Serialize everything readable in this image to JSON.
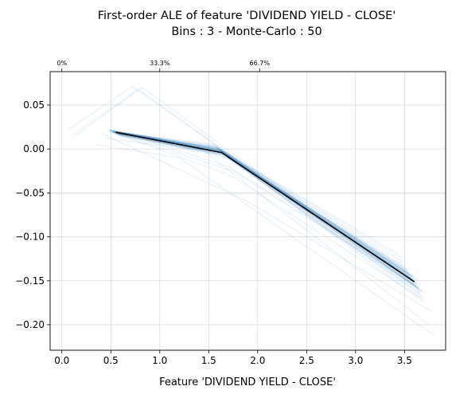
{
  "chart_data": {
    "type": "line",
    "title": "First-order ALE of feature 'DIVIDEND YIELD - CLOSE'",
    "subtitle": "Bins : 3 - Monte-Carlo : 50",
    "xlabel": "Feature 'DIVIDEND YIELD - CLOSE'",
    "ylabel": "",
    "xlim": [
      -0.12,
      3.92
    ],
    "ylim": [
      -0.229,
      0.088
    ],
    "xticks": [
      0.0,
      0.5,
      1.0,
      1.5,
      2.0,
      2.5,
      3.0,
      3.5
    ],
    "xtick_labels": [
      "0.0",
      "0.5",
      "1.0",
      "1.5",
      "2.0",
      "2.5",
      "3.0",
      "3.5"
    ],
    "yticks": [
      0.05,
      0.0,
      -0.05,
      -0.1,
      -0.15,
      -0.2
    ],
    "ytick_labels": [
      "0.05",
      "0.00",
      "−0.05",
      "−0.10",
      "−0.15",
      "−0.20"
    ],
    "top_axis": {
      "ticks": [
        0.0,
        1.0,
        2.02
      ],
      "labels": [
        "0%",
        "33.3%",
        "66.7%"
      ]
    },
    "grid": true,
    "main_series": {
      "color": "#000000",
      "x": [
        0.55,
        1.63,
        3.6
      ],
      "y": [
        0.019,
        -0.004,
        -0.151
      ]
    },
    "monte_carlo": {
      "color": "#1f77b4",
      "samples": [
        {
          "x": [
            0.52,
            1.55,
            3.55
          ],
          "y": [
            0.02,
            0.005,
            -0.14
          ]
        },
        {
          "x": [
            0.48,
            1.6,
            3.58
          ],
          "y": [
            0.021,
            0.0,
            -0.145
          ]
        },
        {
          "x": [
            0.5,
            1.62,
            3.6
          ],
          "y": [
            0.019,
            -0.002,
            -0.15
          ]
        },
        {
          "x": [
            0.53,
            1.65,
            3.62
          ],
          "y": [
            0.018,
            -0.006,
            -0.155
          ]
        },
        {
          "x": [
            0.55,
            1.58,
            3.5
          ],
          "y": [
            0.017,
            0.002,
            -0.13
          ]
        },
        {
          "x": [
            0.57,
            1.64,
            3.65
          ],
          "y": [
            0.016,
            -0.004,
            -0.16
          ]
        },
        {
          "x": [
            0.49,
            1.61,
            3.63
          ],
          "y": [
            0.022,
            -0.001,
            -0.148
          ]
        },
        {
          "x": [
            0.51,
            1.57,
            3.52
          ],
          "y": [
            0.02,
            0.004,
            -0.135
          ]
        },
        {
          "x": [
            0.56,
            1.66,
            3.66
          ],
          "y": [
            0.018,
            -0.008,
            -0.165
          ]
        },
        {
          "x": [
            0.54,
            1.63,
            3.57
          ],
          "y": [
            0.019,
            -0.003,
            -0.147
          ]
        },
        {
          "x": [
            0.47,
            1.59,
            3.54
          ],
          "y": [
            0.021,
            0.001,
            -0.142
          ]
        },
        {
          "x": [
            0.58,
            1.67,
            3.68
          ],
          "y": [
            0.015,
            -0.007,
            -0.17
          ]
        },
        {
          "x": [
            0.52,
            1.62,
            3.61
          ],
          "y": [
            0.02,
            -0.002,
            -0.152
          ]
        },
        {
          "x": [
            0.5,
            1.56,
            3.48
          ],
          "y": [
            0.019,
            0.003,
            -0.125
          ]
        },
        {
          "x": [
            0.55,
            1.64,
            3.64
          ],
          "y": [
            0.018,
            -0.005,
            -0.158
          ]
        },
        {
          "x": [
            0.53,
            1.6,
            3.59
          ],
          "y": [
            0.02,
            -0.001,
            -0.146
          ]
        },
        {
          "x": [
            0.49,
            1.65,
            3.62
          ],
          "y": [
            0.021,
            -0.004,
            -0.153
          ]
        },
        {
          "x": [
            0.57,
            1.61,
            3.56
          ],
          "y": [
            0.017,
            0.0,
            -0.143
          ]
        },
        {
          "x": [
            0.51,
            1.63,
            3.7
          ],
          "y": [
            0.019,
            -0.003,
            -0.175
          ]
        },
        {
          "x": [
            0.54,
            1.58,
            3.45
          ],
          "y": [
            0.02,
            0.002,
            -0.12
          ]
        },
        {
          "x": [
            0.56,
            1.66,
            3.6
          ],
          "y": [
            0.018,
            -0.006,
            -0.149
          ]
        },
        {
          "x": [
            0.5,
            1.62,
            3.58
          ],
          "y": [
            0.02,
            -0.002,
            -0.151
          ]
        },
        {
          "x": [
            0.53,
            1.59,
            3.53
          ],
          "y": [
            0.019,
            0.001,
            -0.139
          ]
        },
        {
          "x": [
            0.55,
            1.64,
            3.67
          ],
          "y": [
            0.018,
            -0.005,
            -0.162
          ]
        },
        {
          "x": [
            0.48,
            1.6,
            3.55
          ],
          "y": [
            0.022,
            -0.001,
            -0.144
          ]
        },
        {
          "x": [
            0.52,
            1.63,
            3.63
          ],
          "y": [
            0.019,
            -0.003,
            -0.154
          ]
        },
        {
          "x": [
            0.58,
            1.65,
            3.61
          ],
          "y": [
            0.016,
            -0.005,
            -0.156
          ]
        },
        {
          "x": [
            0.51,
            1.61,
            3.57
          ],
          "y": [
            0.02,
            -0.001,
            -0.146
          ]
        },
        {
          "x": [
            0.54,
            1.62,
            3.64
          ],
          "y": [
            0.019,
            -0.003,
            -0.15
          ]
        },
        {
          "x": [
            0.53,
            1.57,
            3.51
          ],
          "y": [
            0.02,
            0.002,
            -0.137
          ]
        },
        {
          "x": [
            0.56,
            1.66,
            3.69
          ],
          "y": [
            0.017,
            -0.007,
            -0.168
          ]
        },
        {
          "x": [
            0.5,
            1.64,
            3.62
          ],
          "y": [
            0.021,
            -0.004,
            -0.153
          ]
        },
        {
          "x": [
            0.55,
            1.6,
            3.59
          ],
          "y": [
            0.018,
            0.0,
            -0.145
          ]
        },
        {
          "x": [
            0.52,
            1.63,
            3.6
          ],
          "y": [
            0.019,
            -0.002,
            -0.149
          ]
        },
        {
          "x": [
            0.49,
            1.62,
            3.56
          ],
          "y": [
            0.021,
            -0.002,
            -0.147
          ]
        },
        {
          "x": [
            0.57,
            1.65,
            3.65
          ],
          "y": [
            0.016,
            -0.005,
            -0.159
          ]
        },
        {
          "x": [
            0.53,
            1.58,
            3.54
          ],
          "y": [
            0.02,
            0.001,
            -0.141
          ]
        },
        {
          "x": [
            0.51,
            1.61,
            3.62
          ],
          "y": [
            0.02,
            -0.001,
            -0.151
          ]
        },
        {
          "x": [
            0.55,
            1.67,
            3.66
          ],
          "y": [
            0.018,
            -0.008,
            -0.163
          ]
        },
        {
          "x": [
            0.54,
            1.62,
            3.58
          ],
          "y": [
            0.019,
            -0.003,
            -0.148
          ]
        },
        {
          "x": [
            0.62,
            1.7,
            3.62
          ],
          "y": [
            0.018,
            -0.02,
            -0.155
          ]
        },
        {
          "x": [
            0.58,
            1.68,
            3.55
          ],
          "y": [
            0.017,
            -0.01,
            -0.138
          ]
        },
        {
          "x": [
            0.6,
            1.75,
            3.64
          ],
          "y": [
            0.016,
            -0.025,
            -0.158
          ]
        },
        {
          "x": [
            0.54,
            1.72,
            3.7
          ],
          "y": [
            0.018,
            -0.03,
            -0.172
          ]
        },
        {
          "x": [
            0.06,
            0.72,
            3.65
          ],
          "y": [
            0.022,
            0.071,
            -0.158
          ]
        },
        {
          "x": [
            0.09,
            0.82,
            3.68
          ],
          "y": [
            0.011,
            0.07,
            -0.162
          ]
        },
        {
          "x": [
            0.1,
            0.78,
            3.72
          ],
          "y": [
            0.015,
            0.068,
            -0.165
          ]
        },
        {
          "x": [
            0.35,
            1.2,
            3.8
          ],
          "y": [
            0.005,
            -0.01,
            -0.212
          ]
        },
        {
          "x": [
            0.45,
            1.45,
            3.75
          ],
          "y": [
            0.012,
            -0.002,
            -0.2
          ]
        },
        {
          "x": [
            0.4,
            1.9,
            3.78
          ],
          "y": [
            0.018,
            -0.06,
            -0.185
          ]
        }
      ]
    }
  }
}
